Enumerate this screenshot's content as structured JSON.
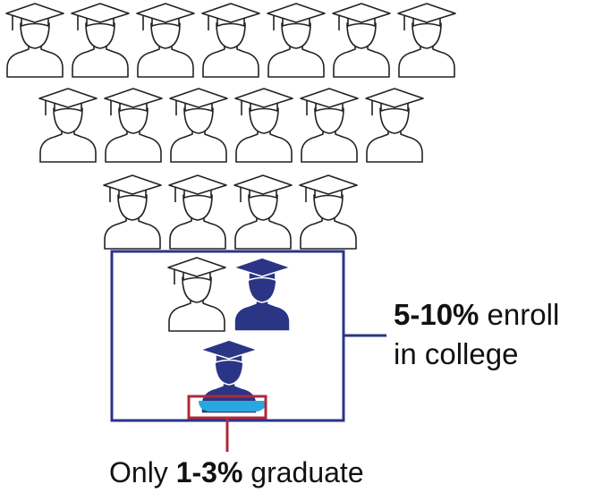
{
  "colors": {
    "outline": "#222222",
    "highlight_person": "#2a3585",
    "enroll_box": "#2a3585",
    "graduate_box": "#b0293a",
    "graduate_fill": "#29a8e0"
  },
  "icon": "graduate-person-icon",
  "rows": [
    {
      "count": 7,
      "style": "outline"
    },
    {
      "count": 6,
      "style": "outline"
    },
    {
      "count": 4,
      "style": "outline"
    },
    {
      "count": 2,
      "styles": [
        "outline",
        "filled"
      ]
    },
    {
      "count": 1,
      "styles": [
        "filled"
      ]
    }
  ],
  "enroll": {
    "percent": "5-10%",
    "line1_rest": " enroll",
    "line2": "in college"
  },
  "graduate": {
    "prefix": "Only ",
    "percent": "1-3%",
    "suffix": " graduate"
  }
}
